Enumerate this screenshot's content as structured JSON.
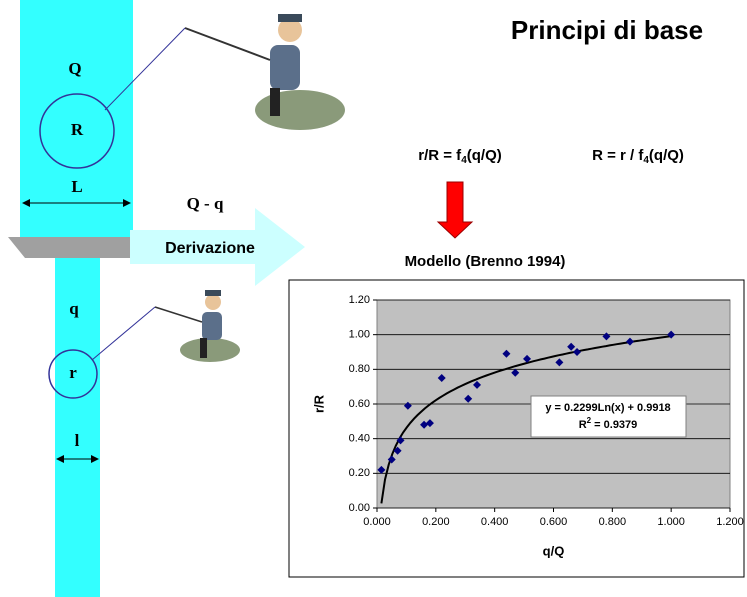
{
  "diagram": {
    "title": "Principi di base",
    "upper_flow": "Q",
    "upper_radius": "R",
    "upper_width": "L",
    "diverted_flow": "Q - q",
    "arrow_label": "Derivazione",
    "lower_flow": "q",
    "lower_radius": "r",
    "lower_width": "l",
    "formula1": {
      "pre": "r/R = f",
      "sub": "4",
      "post": "(q/Q)"
    },
    "formula2": {
      "pre": "R = r / f",
      "sub": "4",
      "post": "(q/Q)"
    },
    "model_title": "Modello (Brenno 1994)"
  },
  "chart_data": {
    "type": "scatter",
    "x_label": "q/Q",
    "y_label": "r/R",
    "color": "#000080",
    "plot_background": "#c0c0c0",
    "grid": true,
    "x": [
      0.015,
      0.05,
      0.07,
      0.08,
      0.105,
      0.16,
      0.18,
      0.22,
      0.31,
      0.34,
      0.44,
      0.47,
      0.51,
      0.62,
      0.66,
      0.68,
      0.78,
      0.86,
      1.0
    ],
    "values": [
      0.22,
      0.28,
      0.33,
      0.39,
      0.59,
      0.48,
      0.49,
      0.75,
      0.63,
      0.71,
      0.89,
      0.78,
      0.86,
      0.84,
      0.93,
      0.9,
      0.99,
      0.96,
      1.0
    ],
    "xlim": [
      0,
      1.2
    ],
    "ylim": [
      0,
      1.2
    ],
    "xticks": [
      {
        "value": 0,
        "label": "0.000"
      },
      {
        "value": 0.2,
        "label": "0.200"
      },
      {
        "value": 0.4,
        "label": "0.400"
      },
      {
        "value": 0.6,
        "label": "0.600"
      },
      {
        "value": 0.8,
        "label": "0.800"
      },
      {
        "value": 1,
        "label": "1.000"
      },
      {
        "value": 1.2,
        "label": "1.200"
      }
    ],
    "yticks": [
      {
        "value": 0,
        "label": "0.00"
      },
      {
        "value": 0.2,
        "label": "0.20"
      },
      {
        "value": 0.4,
        "label": "0.40"
      },
      {
        "value": 0.6,
        "label": "0.60"
      },
      {
        "value": 0.8,
        "label": "0.80"
      },
      {
        "value": 1,
        "label": "1.00"
      },
      {
        "value": 1.2,
        "label": "1.20"
      }
    ],
    "trendline": {
      "label": "y = 0.2299Ln(x) + 0.9918",
      "a": 0.2299,
      "b": 0.9918,
      "r2_pre": "R",
      "r2_sup": "2",
      "r2_post": " = 0.9379"
    }
  }
}
